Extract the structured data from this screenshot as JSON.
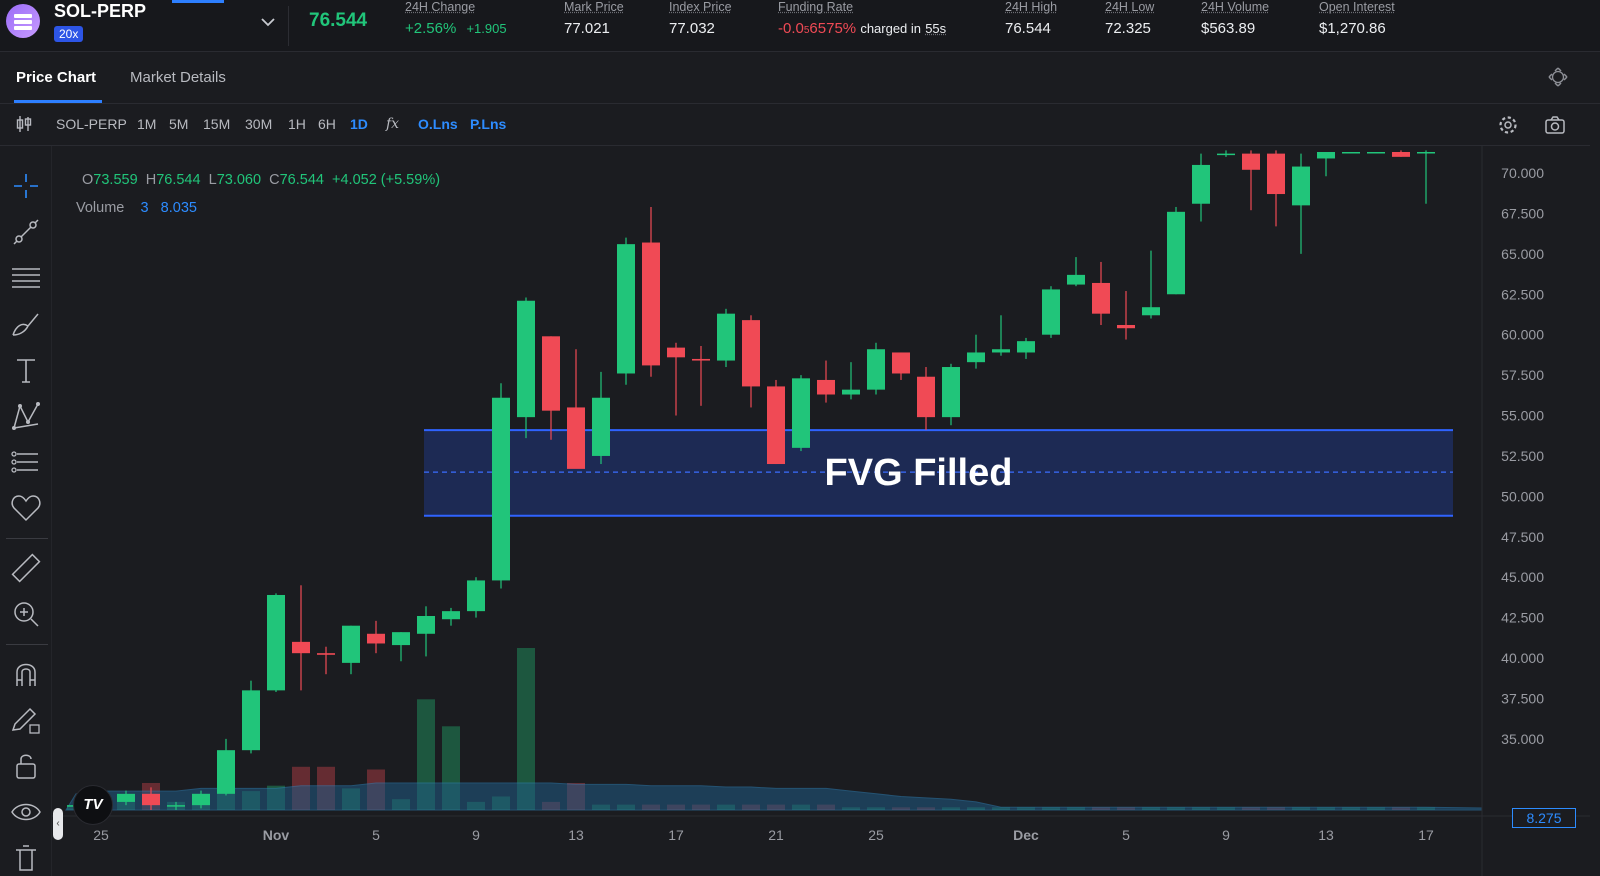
{
  "market": {
    "name": "SOL-PERP",
    "leverage": "20x",
    "last_price": "76.544"
  },
  "stats": {
    "change": {
      "label": "24H Change",
      "pct": "+2.56%",
      "abs": "+1.905"
    },
    "mark": {
      "label": "Mark Price",
      "value": "77.021"
    },
    "index": {
      "label": "Index Price",
      "value": "77.032"
    },
    "funding": {
      "label": "Funding Rate",
      "value_prefix": "-0.0",
      "value_sub": "5",
      "value_suffix": "6575%",
      "charged_text": "charged in",
      "countdown": "55s"
    },
    "high": {
      "label": "24H High",
      "value": "76.544"
    },
    "low": {
      "label": "24H Low",
      "value": "72.325"
    },
    "volume": {
      "label": "24H Volume",
      "value": "$563.89"
    },
    "oi": {
      "label": "Open Interest",
      "value": "$1,270.86"
    }
  },
  "tabs": {
    "price_chart": "Price Chart",
    "market_details": "Market Details"
  },
  "toolbar": {
    "symbol": "SOL-PERP",
    "intervals": [
      "1M",
      "5M",
      "15M",
      "30M",
      "1H",
      "6H",
      "1D"
    ],
    "active_interval": "1D",
    "fx": "fx",
    "o_lns": "O.Lns",
    "p_lns": "P.Lns"
  },
  "legend": {
    "o_label": "O",
    "o": "73.559",
    "h_label": "H",
    "h": "76.544",
    "l_label": "L",
    "l": "73.060",
    "c_label": "C",
    "c": "76.544",
    "chg": "+4.052 (+5.59%)",
    "volume_label": "Volume",
    "volume_count": "3",
    "volume_value": "8.035"
  },
  "colors": {
    "up": "#21c57a",
    "down": "#f04a55",
    "accent": "#2d8cff",
    "zone": "#1d2b57"
  },
  "chart_data": {
    "type": "candlestick",
    "y_ticks": [
      "70.000",
      "67.500",
      "65.000",
      "62.500",
      "60.000",
      "57.500",
      "55.000",
      "52.500",
      "50.000",
      "47.500",
      "45.000",
      "42.500",
      "40.000",
      "37.500",
      "35.000"
    ],
    "ylim": [
      30.6,
      71.3
    ],
    "x_labels": [
      {
        "i": 1,
        "text": "25"
      },
      {
        "i": 8,
        "text": "Nov"
      },
      {
        "i": 12,
        "text": "5"
      },
      {
        "i": 16,
        "text": "9"
      },
      {
        "i": 20,
        "text": "13"
      },
      {
        "i": 24,
        "text": "17"
      },
      {
        "i": 28,
        "text": "21"
      },
      {
        "i": 32,
        "text": "25"
      },
      {
        "i": 38,
        "text": "Dec"
      },
      {
        "i": 42,
        "text": "5"
      },
      {
        "i": 46,
        "text": "9"
      },
      {
        "i": 50,
        "text": "13"
      },
      {
        "i": 54,
        "text": "17"
      }
    ],
    "candles": [
      {
        "o": 30.8,
        "h": 31.0,
        "l": 30.6,
        "c": 30.9
      },
      {
        "o": 30.8,
        "h": 31.4,
        "l": 30.7,
        "c": 31.2
      },
      {
        "o": 31.1,
        "h": 31.8,
        "l": 30.9,
        "c": 31.6
      },
      {
        "o": 31.6,
        "h": 32.0,
        "l": 30.6,
        "c": 30.9
      },
      {
        "o": 30.9,
        "h": 31.1,
        "l": 30.6,
        "c": 30.9
      },
      {
        "o": 30.9,
        "h": 31.8,
        "l": 30.7,
        "c": 31.6
      },
      {
        "o": 31.6,
        "h": 35.0,
        "l": 31.5,
        "c": 34.3
      },
      {
        "o": 34.3,
        "h": 38.6,
        "l": 34.1,
        "c": 38.0
      },
      {
        "o": 38.0,
        "h": 44.0,
        "l": 37.9,
        "c": 43.9
      },
      {
        "o": 41.0,
        "h": 44.5,
        "l": 38.0,
        "c": 40.3
      },
      {
        "o": 40.3,
        "h": 40.7,
        "l": 39.0,
        "c": 40.2
      },
      {
        "o": 39.7,
        "h": 42.0,
        "l": 39.0,
        "c": 42.0
      },
      {
        "o": 41.5,
        "h": 42.3,
        "l": 40.3,
        "c": 40.9
      },
      {
        "o": 40.8,
        "h": 41.6,
        "l": 39.8,
        "c": 41.6
      },
      {
        "o": 41.5,
        "h": 43.2,
        "l": 40.1,
        "c": 42.6
      },
      {
        "o": 42.4,
        "h": 43.1,
        "l": 42.0,
        "c": 42.9
      },
      {
        "o": 42.9,
        "h": 45.0,
        "l": 42.5,
        "c": 44.8
      },
      {
        "o": 44.8,
        "h": 57.0,
        "l": 44.3,
        "c": 56.1
      },
      {
        "o": 54.9,
        "h": 62.3,
        "l": 53.6,
        "c": 62.1
      },
      {
        "o": 59.9,
        "h": 59.9,
        "l": 53.5,
        "c": 55.3
      },
      {
        "o": 55.5,
        "h": 59.1,
        "l": 51.9,
        "c": 51.7
      },
      {
        "o": 52.5,
        "h": 57.7,
        "l": 52.0,
        "c": 56.1
      },
      {
        "o": 57.6,
        "h": 66.0,
        "l": 56.9,
        "c": 65.6
      },
      {
        "o": 65.7,
        "h": 67.9,
        "l": 57.4,
        "c": 58.1
      },
      {
        "o": 59.2,
        "h": 59.5,
        "l": 55.0,
        "c": 58.6
      },
      {
        "o": 58.5,
        "h": 59.3,
        "l": 55.6,
        "c": 58.4
      },
      {
        "o": 58.4,
        "h": 61.6,
        "l": 58.0,
        "c": 61.3
      },
      {
        "o": 60.9,
        "h": 61.2,
        "l": 55.5,
        "c": 56.8
      },
      {
        "o": 56.8,
        "h": 57.2,
        "l": 52.0,
        "c": 52.0
      },
      {
        "o": 53.0,
        "h": 57.5,
        "l": 52.8,
        "c": 57.3
      },
      {
        "o": 57.2,
        "h": 58.4,
        "l": 55.8,
        "c": 56.3
      },
      {
        "o": 56.3,
        "h": 58.3,
        "l": 56.0,
        "c": 56.6
      },
      {
        "o": 56.6,
        "h": 59.5,
        "l": 56.3,
        "c": 59.1
      },
      {
        "o": 58.9,
        "h": 58.9,
        "l": 57.2,
        "c": 57.6
      },
      {
        "o": 57.4,
        "h": 58.0,
        "l": 54.1,
        "c": 54.9
      },
      {
        "o": 54.9,
        "h": 58.2,
        "l": 54.4,
        "c": 58.0
      },
      {
        "o": 58.3,
        "h": 60.0,
        "l": 57.9,
        "c": 58.9
      },
      {
        "o": 58.9,
        "h": 61.2,
        "l": 58.7,
        "c": 59.1
      },
      {
        "o": 58.9,
        "h": 59.8,
        "l": 58.5,
        "c": 59.6
      },
      {
        "o": 60.0,
        "h": 63.0,
        "l": 59.8,
        "c": 62.8
      },
      {
        "o": 63.1,
        "h": 64.8,
        "l": 63.0,
        "c": 63.7
      },
      {
        "o": 63.2,
        "h": 64.5,
        "l": 60.6,
        "c": 61.3
      },
      {
        "o": 60.6,
        "h": 62.7,
        "l": 59.7,
        "c": 60.4
      },
      {
        "o": 61.2,
        "h": 65.2,
        "l": 61.0,
        "c": 61.7
      },
      {
        "o": 62.5,
        "h": 67.9,
        "l": 62.5,
        "c": 67.6
      },
      {
        "o": 68.1,
        "h": 71.2,
        "l": 67.0,
        "c": 70.5
      },
      {
        "o": 71.2,
        "h": 71.4,
        "l": 71.0,
        "c": 71.2
      },
      {
        "o": 71.2,
        "h": 71.4,
        "l": 67.7,
        "c": 70.2
      },
      {
        "o": 71.2,
        "h": 71.4,
        "l": 66.7,
        "c": 68.7
      },
      {
        "o": 68.0,
        "h": 71.2,
        "l": 65.0,
        "c": 70.4
      },
      {
        "o": 70.9,
        "h": 71.2,
        "l": 69.8,
        "c": 71.3
      },
      {
        "o": 71.3,
        "h": 71.3,
        "l": 71.3,
        "c": 71.3
      },
      {
        "o": 71.3,
        "h": 71.3,
        "l": 71.3,
        "c": 71.3
      },
      {
        "o": 71.3,
        "h": 71.4,
        "l": 71.0,
        "c": 71.0
      },
      {
        "o": 71.3,
        "h": 71.4,
        "l": 68.1,
        "c": 71.3
      }
    ],
    "volume": [
      0.1,
      0.4,
      0.5,
      1.0,
      0.3,
      0.6,
      0.9,
      0.7,
      0.9,
      1.6,
      1.6,
      0.8,
      1.5,
      0.4,
      4.1,
      3.1,
      0.3,
      0.5,
      6.0,
      0.3,
      1.0,
      0.2,
      0.2,
      0.2,
      0.2,
      0.2,
      0.2,
      0.2,
      0.2,
      0.2,
      0.2,
      0.1,
      0.1,
      0.1,
      0.1,
      0.1,
      0.1,
      0.1,
      0.1,
      0.1,
      0.1,
      0.1,
      0.1,
      0.1,
      0.1,
      0.1,
      0.1,
      0.1,
      0.1,
      0.1,
      0.1,
      0.1,
      0.1,
      0.1,
      0.1
    ],
    "volume_axis_value": "8.275",
    "zone": {
      "top": 54.1,
      "bottom": 48.8,
      "mid": 51.5,
      "from_i": 14,
      "to_i": 55,
      "label": "FVG Filled"
    }
  }
}
